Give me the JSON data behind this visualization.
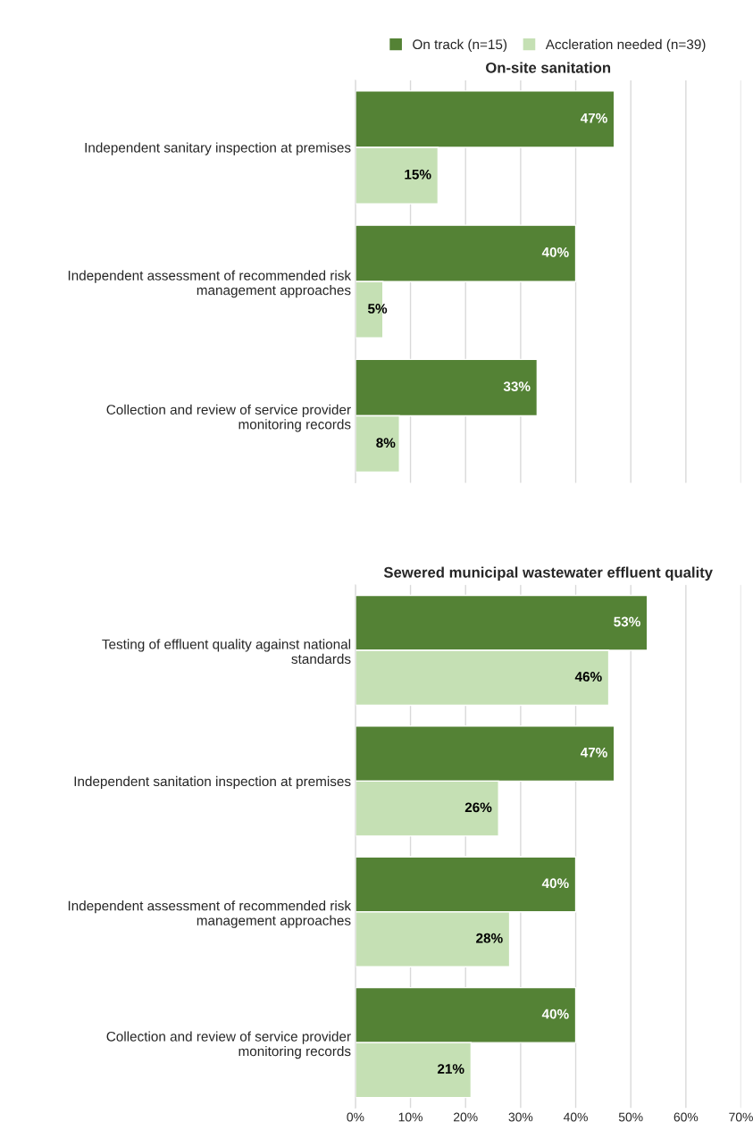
{
  "chart_data": [
    {
      "type": "bar",
      "orientation": "horizontal",
      "title": "On-site sanitation",
      "categories": [
        "Independent sanitary inspection at premises",
        "Independent assessment of recommended risk management approaches",
        "Collection and review of service provider monitoring records"
      ],
      "series": [
        {
          "name": "On track (n=15)",
          "color": "#548235",
          "values": [
            47,
            40,
            33
          ],
          "value_labels": [
            "47%",
            "40%",
            "33%"
          ]
        },
        {
          "name": "Accleration needed (n=39)",
          "color": "#c5e0b4",
          "values": [
            15,
            5,
            8
          ],
          "value_labels": [
            "15%",
            "5%",
            "8%"
          ]
        }
      ],
      "xlim": [
        0,
        70
      ],
      "xticks": [
        {
          "value": 0,
          "label": null
        },
        {
          "value": 10,
          "label": null
        },
        {
          "value": 20,
          "label": null
        },
        {
          "value": 30,
          "label": null
        },
        {
          "value": 40,
          "label": null
        },
        {
          "value": 50,
          "label": null
        },
        {
          "value": 60,
          "label": null
        },
        {
          "value": 70,
          "label": null
        }
      ],
      "grid": "x",
      "legend": "top",
      "tick_labels": "y"
    },
    {
      "type": "bar",
      "orientation": "horizontal",
      "title": "Sewered municipal wastewater effluent quality",
      "categories": [
        "Testing of effluent quality against national standards",
        "Independent sanitation inspection at premises",
        "Independent assessment of recommended risk management approaches",
        "Collection and review of service provider monitoring records"
      ],
      "series": [
        {
          "color": "#548235",
          "values": [
            53,
            47,
            40,
            40
          ],
          "value_labels": [
            "53%",
            "47%",
            "40%",
            "40%"
          ]
        },
        {
          "color": "#c5e0b4",
          "values": [
            46,
            26,
            28,
            21
          ],
          "value_labels": [
            "46%",
            "26%",
            "28%",
            "21%"
          ]
        }
      ],
      "xlim": [
        0,
        70
      ],
      "xticks": [
        {
          "value": 0,
          "label": "0%"
        },
        {
          "value": 10,
          "label": "10%"
        },
        {
          "value": 20,
          "label": "20%"
        },
        {
          "value": 30,
          "label": "30%"
        },
        {
          "value": 40,
          "label": "40%"
        },
        {
          "value": 50,
          "label": "50%"
        },
        {
          "value": 60,
          "label": "60%"
        },
        {
          "value": 70,
          "label": "70%"
        }
      ],
      "grid": "x"
    }
  ]
}
